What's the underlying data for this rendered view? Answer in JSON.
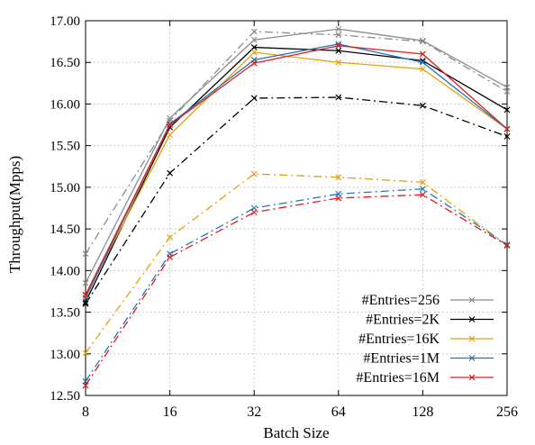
{
  "chart_data": {
    "type": "line",
    "xlabel": "Batch Size",
    "ylabel": "Throughput(Mpps)",
    "categories": [
      "8",
      "16",
      "32",
      "64",
      "128",
      "256"
    ],
    "ylim": [
      12.5,
      17.0
    ],
    "yticks": [
      "12.50",
      "13.00",
      "13.50",
      "14.00",
      "14.50",
      "15.00",
      "15.50",
      "16.00",
      "16.50",
      "17.00"
    ],
    "grid": true,
    "legend_position": "bottom-right",
    "series": [
      {
        "name": "#Entries=256",
        "color": "#8c8c8c",
        "dash": "solid",
        "marker": "x",
        "in_legend": true,
        "values": [
          13.85,
          15.83,
          16.77,
          16.9,
          16.76,
          16.2
        ]
      },
      {
        "name": "#Entries=2K",
        "color": "#000000",
        "dash": "solid",
        "marker": "x",
        "in_legend": true,
        "values": [
          13.62,
          15.72,
          16.68,
          16.64,
          16.52,
          15.93
        ]
      },
      {
        "name": "#Entries=16K",
        "color": "#e5a00d",
        "dash": "solid",
        "marker": "x",
        "in_legend": true,
        "values": [
          13.7,
          15.63,
          16.62,
          16.5,
          16.42,
          15.7
        ]
      },
      {
        "name": "#Entries=1M",
        "color": "#1f77b4",
        "dash": "solid",
        "marker": "x",
        "in_legend": true,
        "values": [
          13.67,
          15.76,
          16.53,
          16.72,
          16.5,
          15.7
        ]
      },
      {
        "name": "#Entries=16M",
        "color": "#e31a1c",
        "dash": "solid",
        "marker": "x",
        "in_legend": true,
        "values": [
          13.71,
          15.75,
          16.49,
          16.7,
          16.6,
          15.7
        ]
      },
      {
        "name": "",
        "color": "#8c8c8c",
        "dash": "dashdot",
        "marker": "x",
        "in_legend": false,
        "values": [
          14.2,
          15.8,
          16.87,
          16.83,
          16.75,
          16.15
        ]
      },
      {
        "name": "",
        "color": "#000000",
        "dash": "dashdot",
        "marker": "x",
        "in_legend": false,
        "values": [
          13.6,
          15.17,
          16.07,
          16.08,
          15.98,
          15.61
        ]
      },
      {
        "name": "",
        "color": "#e5a00d",
        "dash": "dashdot",
        "marker": "x",
        "in_legend": false,
        "values": [
          13.01,
          14.4,
          15.16,
          15.12,
          15.06,
          14.3
        ]
      },
      {
        "name": "",
        "color": "#1f77b4",
        "dash": "dashdot",
        "marker": "x",
        "in_legend": false,
        "values": [
          12.67,
          14.2,
          14.75,
          14.92,
          14.98,
          14.31
        ]
      },
      {
        "name": "",
        "color": "#e31a1c",
        "dash": "dashdot",
        "marker": "x",
        "in_legend": false,
        "values": [
          12.62,
          14.16,
          14.7,
          14.87,
          14.91,
          14.3
        ]
      }
    ]
  }
}
